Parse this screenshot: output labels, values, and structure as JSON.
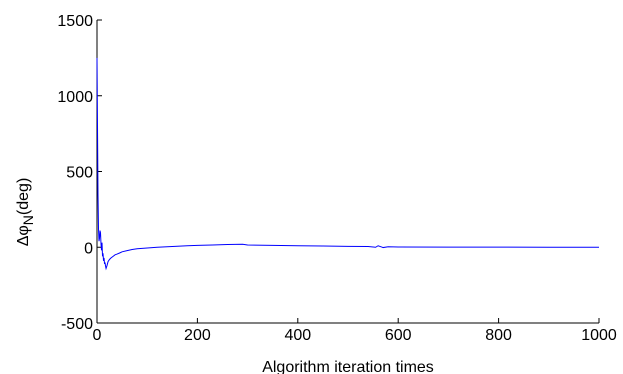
{
  "chart_data": {
    "type": "line",
    "title": "",
    "xlabel": "Algorithm iteration times",
    "ylabel": {
      "delta": "Δφ",
      "subscript": "N",
      "unit": "(deg)"
    },
    "xlim": [
      0,
      1000
    ],
    "ylim": [
      -500,
      1500
    ],
    "xticks": [
      "0",
      "200",
      "400",
      "600",
      "800",
      "1000"
    ],
    "yticks": [
      "-500",
      "0",
      "500",
      "1000",
      "1500"
    ],
    "xtick_values": [
      0,
      200,
      400,
      600,
      800,
      1000
    ],
    "ytick_values": [
      -500,
      0,
      500,
      1000,
      1500
    ],
    "grid": false,
    "legend": "none",
    "series": [
      {
        "color": "#0000ff",
        "x": [
          0,
          1,
          2,
          3,
          4,
          5,
          6,
          7,
          8,
          9,
          10,
          11,
          12,
          13,
          14,
          15,
          16,
          17,
          18,
          20,
          22,
          25,
          28,
          32,
          36,
          40,
          45,
          50,
          60,
          70,
          80,
          100,
          120,
          150,
          180,
          200,
          230,
          260,
          290,
          300,
          350,
          400,
          450,
          500,
          540,
          555,
          560,
          570,
          580,
          600,
          700,
          800,
          900,
          1000
        ],
        "y": [
          1250,
          800,
          350,
          120,
          40,
          60,
          110,
          95,
          20,
          -20,
          30,
          -60,
          -40,
          -90,
          -70,
          -110,
          -100,
          -125,
          -140,
          -120,
          -95,
          -80,
          -70,
          -60,
          -50,
          -45,
          -38,
          -30,
          -22,
          -15,
          -10,
          -5,
          0,
          5,
          10,
          12,
          15,
          18,
          20,
          15,
          12,
          10,
          8,
          6,
          5,
          0,
          10,
          -2,
          3,
          2,
          1,
          0.5,
          0,
          0
        ]
      }
    ]
  }
}
